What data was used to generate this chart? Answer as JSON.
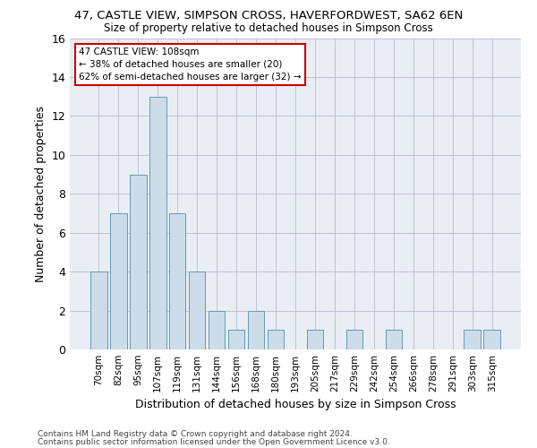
{
  "title1": "47, CASTLE VIEW, SIMPSON CROSS, HAVERFORDWEST, SA62 6EN",
  "title2": "Size of property relative to detached houses in Simpson Cross",
  "xlabel": "Distribution of detached houses by size in Simpson Cross",
  "ylabel": "Number of detached properties",
  "categories": [
    "70sqm",
    "82sqm",
    "95sqm",
    "107sqm",
    "119sqm",
    "131sqm",
    "144sqm",
    "156sqm",
    "168sqm",
    "180sqm",
    "193sqm",
    "205sqm",
    "217sqm",
    "229sqm",
    "242sqm",
    "254sqm",
    "266sqm",
    "278sqm",
    "291sqm",
    "303sqm",
    "315sqm"
  ],
  "values": [
    4,
    7,
    9,
    13,
    7,
    4,
    2,
    1,
    2,
    1,
    0,
    1,
    0,
    1,
    0,
    1,
    0,
    0,
    0,
    1,
    1
  ],
  "bar_color": "#ccdce8",
  "bar_edge_color": "#6699bb",
  "ylim": [
    0,
    16
  ],
  "yticks": [
    0,
    2,
    4,
    6,
    8,
    10,
    12,
    14,
    16
  ],
  "annotation_title": "47 CASTLE VIEW: 108sqm",
  "annotation_line1": "← 38% of detached houses are smaller (20)",
  "annotation_line2": "62% of semi-detached houses are larger (32) →",
  "annotation_box_color": "#ffffff",
  "annotation_box_edge": "#cc0000",
  "footer1": "Contains HM Land Registry data © Crown copyright and database right 2024.",
  "footer2": "Contains public sector information licensed under the Open Government Licence v3.0.",
  "bg_color": "#ffffff",
  "plot_bg_color": "#e8eef4"
}
